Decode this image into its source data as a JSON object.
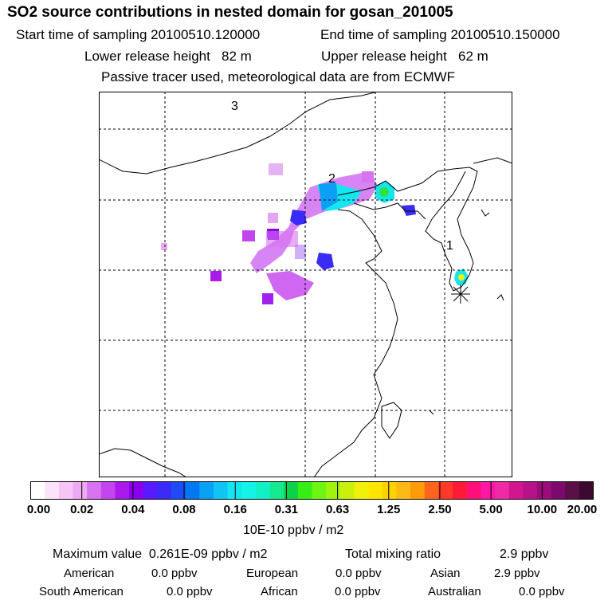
{
  "header": {
    "title": "SO2 source contributions in nested domain for gosan_201005",
    "start": "Start time of sampling 20100510.120000",
    "end": "End time of sampling 20100510.150000",
    "lower": "Lower release height   82 m",
    "upper": "Upper release height   62 m",
    "info": "Passive tracer used, meteorological data are from ECMWF"
  },
  "map": {
    "labels": [
      "3",
      "2",
      "1"
    ],
    "receptor_symbol": "asterisk"
  },
  "colorbar": {
    "colors": [
      "#ffffff",
      "#fbe3fb",
      "#f6c5f6",
      "#efa8f2",
      "#d873f0",
      "#c245ee",
      "#aa1aeb",
      "#8a00ec",
      "#5a1aff",
      "#3a2cf6",
      "#1d4bf6",
      "#0078f2",
      "#0aa0f6",
      "#10c4f4",
      "#14e6f0",
      "#14f4e6",
      "#10f0c4",
      "#16e890",
      "#0cd24a",
      "#36ee14",
      "#6ef514",
      "#a0f20f",
      "#caf00c",
      "#f0f00a",
      "#ffe600",
      "#ffd200",
      "#fcb814",
      "#ff9a0a",
      "#ff641e",
      "#ff3a28",
      "#ff1a38",
      "#ff1078",
      "#ff18a8",
      "#f02aa6",
      "#d2168e",
      "#b6128a",
      "#9a0c7a",
      "#7c0a6e",
      "#5c0e46",
      "#3c0a30"
    ],
    "ticks": [
      "0.00",
      "0.02",
      "0.04",
      "0.08",
      "0.16",
      "0.31",
      "0.63",
      "1.25",
      "2.50",
      "5.00",
      "10.00",
      "20.00"
    ],
    "unit": "10E-10 ppbv / m2"
  },
  "stats": {
    "max_label": "Maximum value  0.261E-09 ppbv / m2",
    "total_label": "Total mixing ratio",
    "total_value": "2.9 ppbv",
    "regions": [
      {
        "name": "American",
        "value": "0.0 ppbv"
      },
      {
        "name": "European",
        "value": "0.0 ppbv"
      },
      {
        "name": "Asian",
        "value": "2.9 ppbv"
      },
      {
        "name": "South American",
        "value": "0.0 ppbv"
      },
      {
        "name": "African",
        "value": "0.0 ppbv"
      },
      {
        "name": "Australian",
        "value": "0.0 ppbv"
      }
    ]
  }
}
